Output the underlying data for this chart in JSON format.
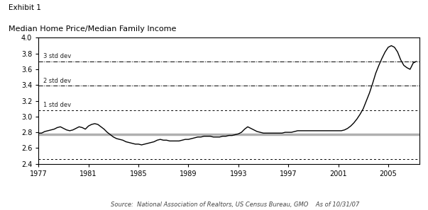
{
  "title_line1": "Exhibit 1",
  "title_line2": "Median Home Price/Median Family Income",
  "source_text": "Source:  National Association of Realtors, US Census Bureau, GMO    As of 10/31/07",
  "xlim": [
    1977,
    2007.5
  ],
  "ylim": [
    2.4,
    4.0
  ],
  "yticks": [
    2.4,
    2.6,
    2.8,
    3.0,
    3.2,
    3.4,
    3.6,
    3.8,
    4.0
  ],
  "xticks": [
    1977,
    1981,
    1985,
    1989,
    1993,
    1997,
    2001,
    2005
  ],
  "mean_line": 2.77,
  "std1_line": 3.08,
  "std2_line": 3.39,
  "std3_line": 3.7,
  "neg1_std_line": 2.46,
  "std1_label": "1 std dev",
  "std2_label": "2 std dev",
  "std3_label": "3 std dev",
  "line_color": "#000000",
  "mean_line_color": "#b0b0b0",
  "ref_line_color": "#000000",
  "background_color": "#ffffff",
  "years": [
    1977.0,
    1977.25,
    1977.5,
    1977.75,
    1978.0,
    1978.25,
    1978.5,
    1978.75,
    1979.0,
    1979.25,
    1979.5,
    1979.75,
    1980.0,
    1980.25,
    1980.5,
    1980.75,
    1981.0,
    1981.25,
    1981.5,
    1981.75,
    1982.0,
    1982.25,
    1982.5,
    1982.75,
    1983.0,
    1983.25,
    1983.5,
    1983.75,
    1984.0,
    1984.25,
    1984.5,
    1984.75,
    1985.0,
    1985.25,
    1985.5,
    1985.75,
    1986.0,
    1986.25,
    1986.5,
    1986.75,
    1987.0,
    1987.25,
    1987.5,
    1987.75,
    1988.0,
    1988.25,
    1988.5,
    1988.75,
    1989.0,
    1989.25,
    1989.5,
    1989.75,
    1990.0,
    1990.25,
    1990.5,
    1990.75,
    1991.0,
    1991.25,
    1991.5,
    1991.75,
    1992.0,
    1992.25,
    1992.5,
    1992.75,
    1993.0,
    1993.25,
    1993.5,
    1993.75,
    1994.0,
    1994.25,
    1994.5,
    1994.75,
    1995.0,
    1995.25,
    1995.5,
    1995.75,
    1996.0,
    1996.25,
    1996.5,
    1996.75,
    1997.0,
    1997.25,
    1997.5,
    1997.75,
    1998.0,
    1998.25,
    1998.5,
    1998.75,
    1999.0,
    1999.25,
    1999.5,
    1999.75,
    2000.0,
    2000.25,
    2000.5,
    2000.75,
    2001.0,
    2001.25,
    2001.5,
    2001.75,
    2002.0,
    2002.25,
    2002.5,
    2002.75,
    2003.0,
    2003.25,
    2003.5,
    2003.75,
    2004.0,
    2004.25,
    2004.5,
    2004.75,
    2005.0,
    2005.25,
    2005.5,
    2005.75,
    2006.0,
    2006.25,
    2006.5,
    2006.75,
    2007.0,
    2007.25
  ],
  "values": [
    2.79,
    2.79,
    2.81,
    2.82,
    2.83,
    2.84,
    2.86,
    2.87,
    2.85,
    2.83,
    2.82,
    2.83,
    2.85,
    2.87,
    2.86,
    2.84,
    2.88,
    2.9,
    2.91,
    2.9,
    2.87,
    2.84,
    2.8,
    2.77,
    2.74,
    2.72,
    2.71,
    2.7,
    2.68,
    2.67,
    2.66,
    2.65,
    2.65,
    2.64,
    2.65,
    2.66,
    2.67,
    2.68,
    2.7,
    2.71,
    2.7,
    2.7,
    2.69,
    2.69,
    2.69,
    2.69,
    2.7,
    2.71,
    2.71,
    2.72,
    2.73,
    2.74,
    2.74,
    2.75,
    2.75,
    2.75,
    2.74,
    2.74,
    2.74,
    2.75,
    2.75,
    2.76,
    2.76,
    2.77,
    2.78,
    2.8,
    2.84,
    2.87,
    2.85,
    2.83,
    2.81,
    2.8,
    2.79,
    2.79,
    2.79,
    2.79,
    2.79,
    2.79,
    2.79,
    2.8,
    2.8,
    2.8,
    2.81,
    2.82,
    2.82,
    2.82,
    2.82,
    2.82,
    2.82,
    2.82,
    2.82,
    2.82,
    2.82,
    2.82,
    2.82,
    2.82,
    2.82,
    2.82,
    2.83,
    2.85,
    2.88,
    2.92,
    2.97,
    3.03,
    3.1,
    3.2,
    3.3,
    3.42,
    3.55,
    3.65,
    3.74,
    3.82,
    3.88,
    3.9,
    3.88,
    3.82,
    3.72,
    3.65,
    3.62,
    3.6,
    3.68,
    3.7
  ]
}
